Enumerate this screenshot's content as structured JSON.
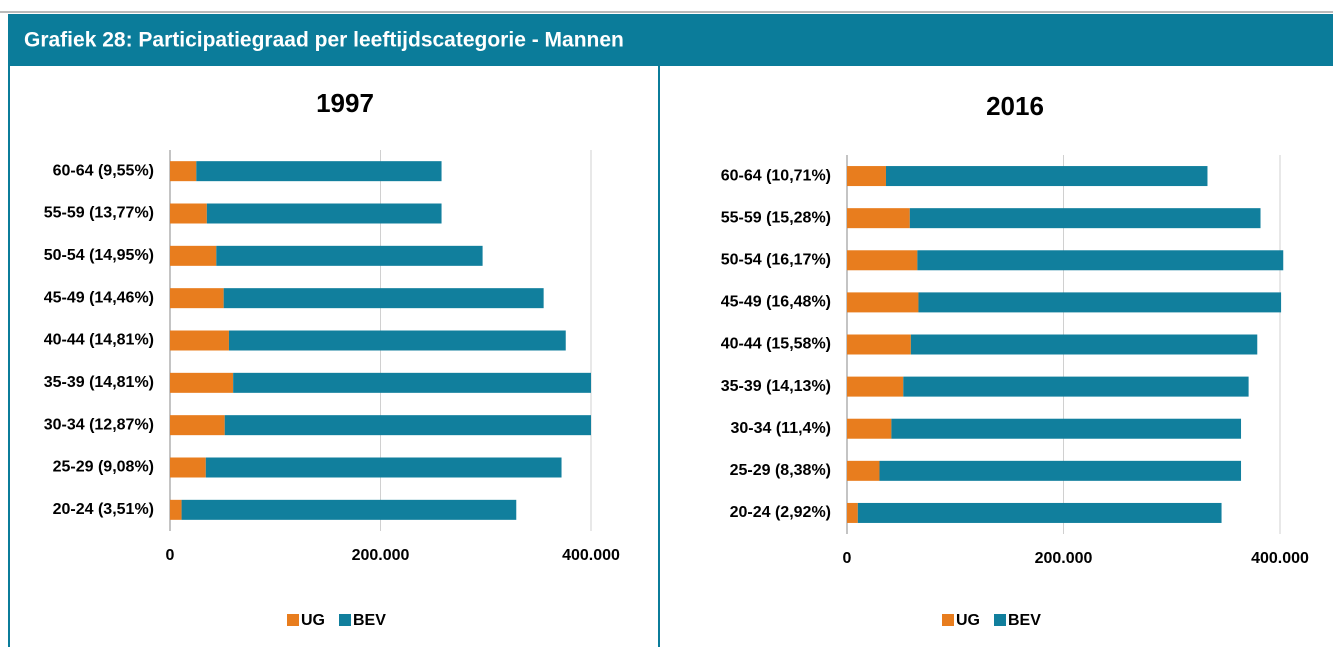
{
  "header": {
    "title": "Grafiek 28: Participatiegraad per leeftijdscategorie - Mannen"
  },
  "chart_data": [
    {
      "type": "bar",
      "stacked": true,
      "orientation": "horizontal",
      "title": "1997",
      "categories": [
        "60-64 (9,55%)",
        "55-59 (13,77%)",
        "50-54 (14,95%)",
        "45-49 (14,46%)",
        "40-44 (14,81%)",
        "35-39 (14,81%)",
        "30-34 (12,87%)",
        "25-29 (9,08%)",
        "20-24 (3,51%)"
      ],
      "series": [
        {
          "name": "UG",
          "color": "#e87d1e",
          "values": [
            25000,
            35000,
            44000,
            51000,
            56000,
            60000,
            52000,
            34000,
            11000
          ]
        },
        {
          "name": "BEV",
          "color": "#117f9d",
          "values": [
            233000,
            223000,
            253000,
            304000,
            320000,
            340000,
            348000,
            338000,
            318000
          ]
        }
      ],
      "xlim": [
        0,
        400000
      ],
      "xticks": [
        0,
        {
          "value": 200000,
          "label": "200.000"
        },
        {
          "value": 400000,
          "label": "400.000"
        }
      ],
      "grid": true,
      "legend": "bottom"
    },
    {
      "type": "bar",
      "stacked": true,
      "orientation": "horizontal",
      "title": "2016",
      "categories": [
        "60-64 (10,71%)",
        "55-59 (15,28%)",
        "50-54 (16,17%)",
        "45-49 (16,48%)",
        "40-44 (15,58%)",
        "35-39 (14,13%)",
        "30-34 (11,4%)",
        "25-29 (8,38%)",
        "20-24 (2,92%)"
      ],
      "series": [
        {
          "name": "UG",
          "color": "#e87d1e",
          "values": [
            36000,
            58000,
            65000,
            66000,
            59000,
            52000,
            41000,
            30000,
            10000
          ]
        },
        {
          "name": "BEV",
          "color": "#117f9d",
          "values": [
            297000,
            324000,
            338000,
            335000,
            320000,
            319000,
            323000,
            334000,
            336000
          ]
        }
      ],
      "xlim": [
        0,
        400000
      ],
      "xticks": [
        0,
        {
          "value": 200000,
          "label": "200.000"
        },
        {
          "value": 400000,
          "label": "400.000"
        }
      ],
      "grid": true,
      "legend": "bottom"
    }
  ]
}
